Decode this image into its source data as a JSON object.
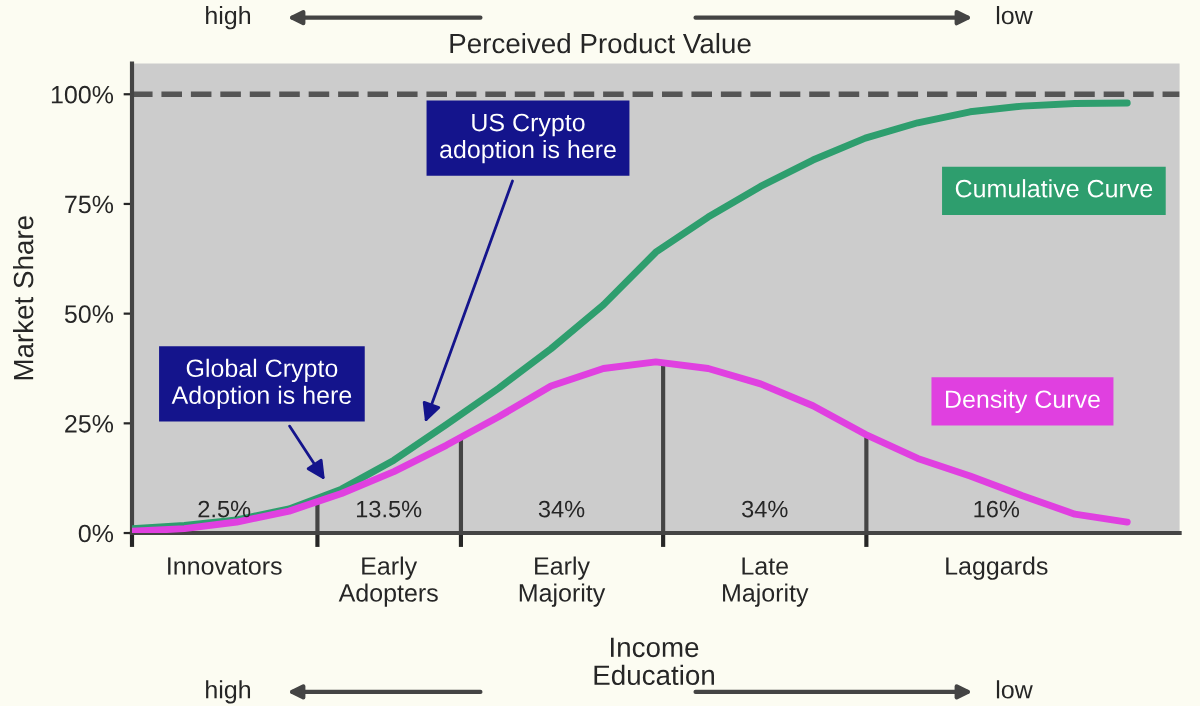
{
  "chart_data": {
    "type": "line",
    "title": "Perceived Product Value",
    "xlabel": "Income\nEducation",
    "ylabel": "Market Share",
    "categories": [
      null,
      null,
      null,
      null,
      null,
      null,
      null,
      null,
      null,
      null,
      null,
      null,
      null,
      null,
      null,
      null,
      null,
      null,
      null,
      null
    ],
    "series": [
      {
        "name": "Cumulative Curve",
        "color": "#2e9e6e",
        "values": [
          1,
          1.7,
          3,
          5.5,
          10,
          16.6,
          24.7,
          33,
          42,
          52,
          64,
          72,
          79,
          85,
          90,
          93.5,
          96,
          97.3,
          97.9,
          98
        ]
      },
      {
        "name": "Density Curve",
        "color": "#e040e0",
        "values": [
          0.4,
          1,
          2.5,
          5,
          9,
          14,
          20,
          26.5,
          33.5,
          37.5,
          39,
          37.5,
          34,
          29,
          22.5,
          17,
          13,
          8.5,
          4.3,
          2.5
        ]
      }
    ],
    "ylim": [
      0,
      107
    ],
    "yticks": [
      {
        "value": 0,
        "label": "0%"
      },
      {
        "value": 25,
        "label": "25%"
      },
      {
        "value": 50,
        "label": "50%"
      },
      {
        "value": 75,
        "label": "75%"
      },
      {
        "value": 100,
        "label": "100%"
      }
    ],
    "tick_labels": "y",
    "ref_lines": [
      {
        "axis": "y",
        "value": 100,
        "line_style": "dashed",
        "color": "#555555"
      }
    ],
    "annotations": [
      "high",
      "low",
      "high",
      "low",
      "Innovators",
      "Early\nAdopters",
      "Early\nMajority",
      "Late\nMajority",
      "Laggards",
      "2.5%",
      "13.5%",
      "34%",
      "34%",
      "16%",
      "US Crypto\nadoption is here",
      "Global Crypto\nAdoption is here"
    ]
  }
}
